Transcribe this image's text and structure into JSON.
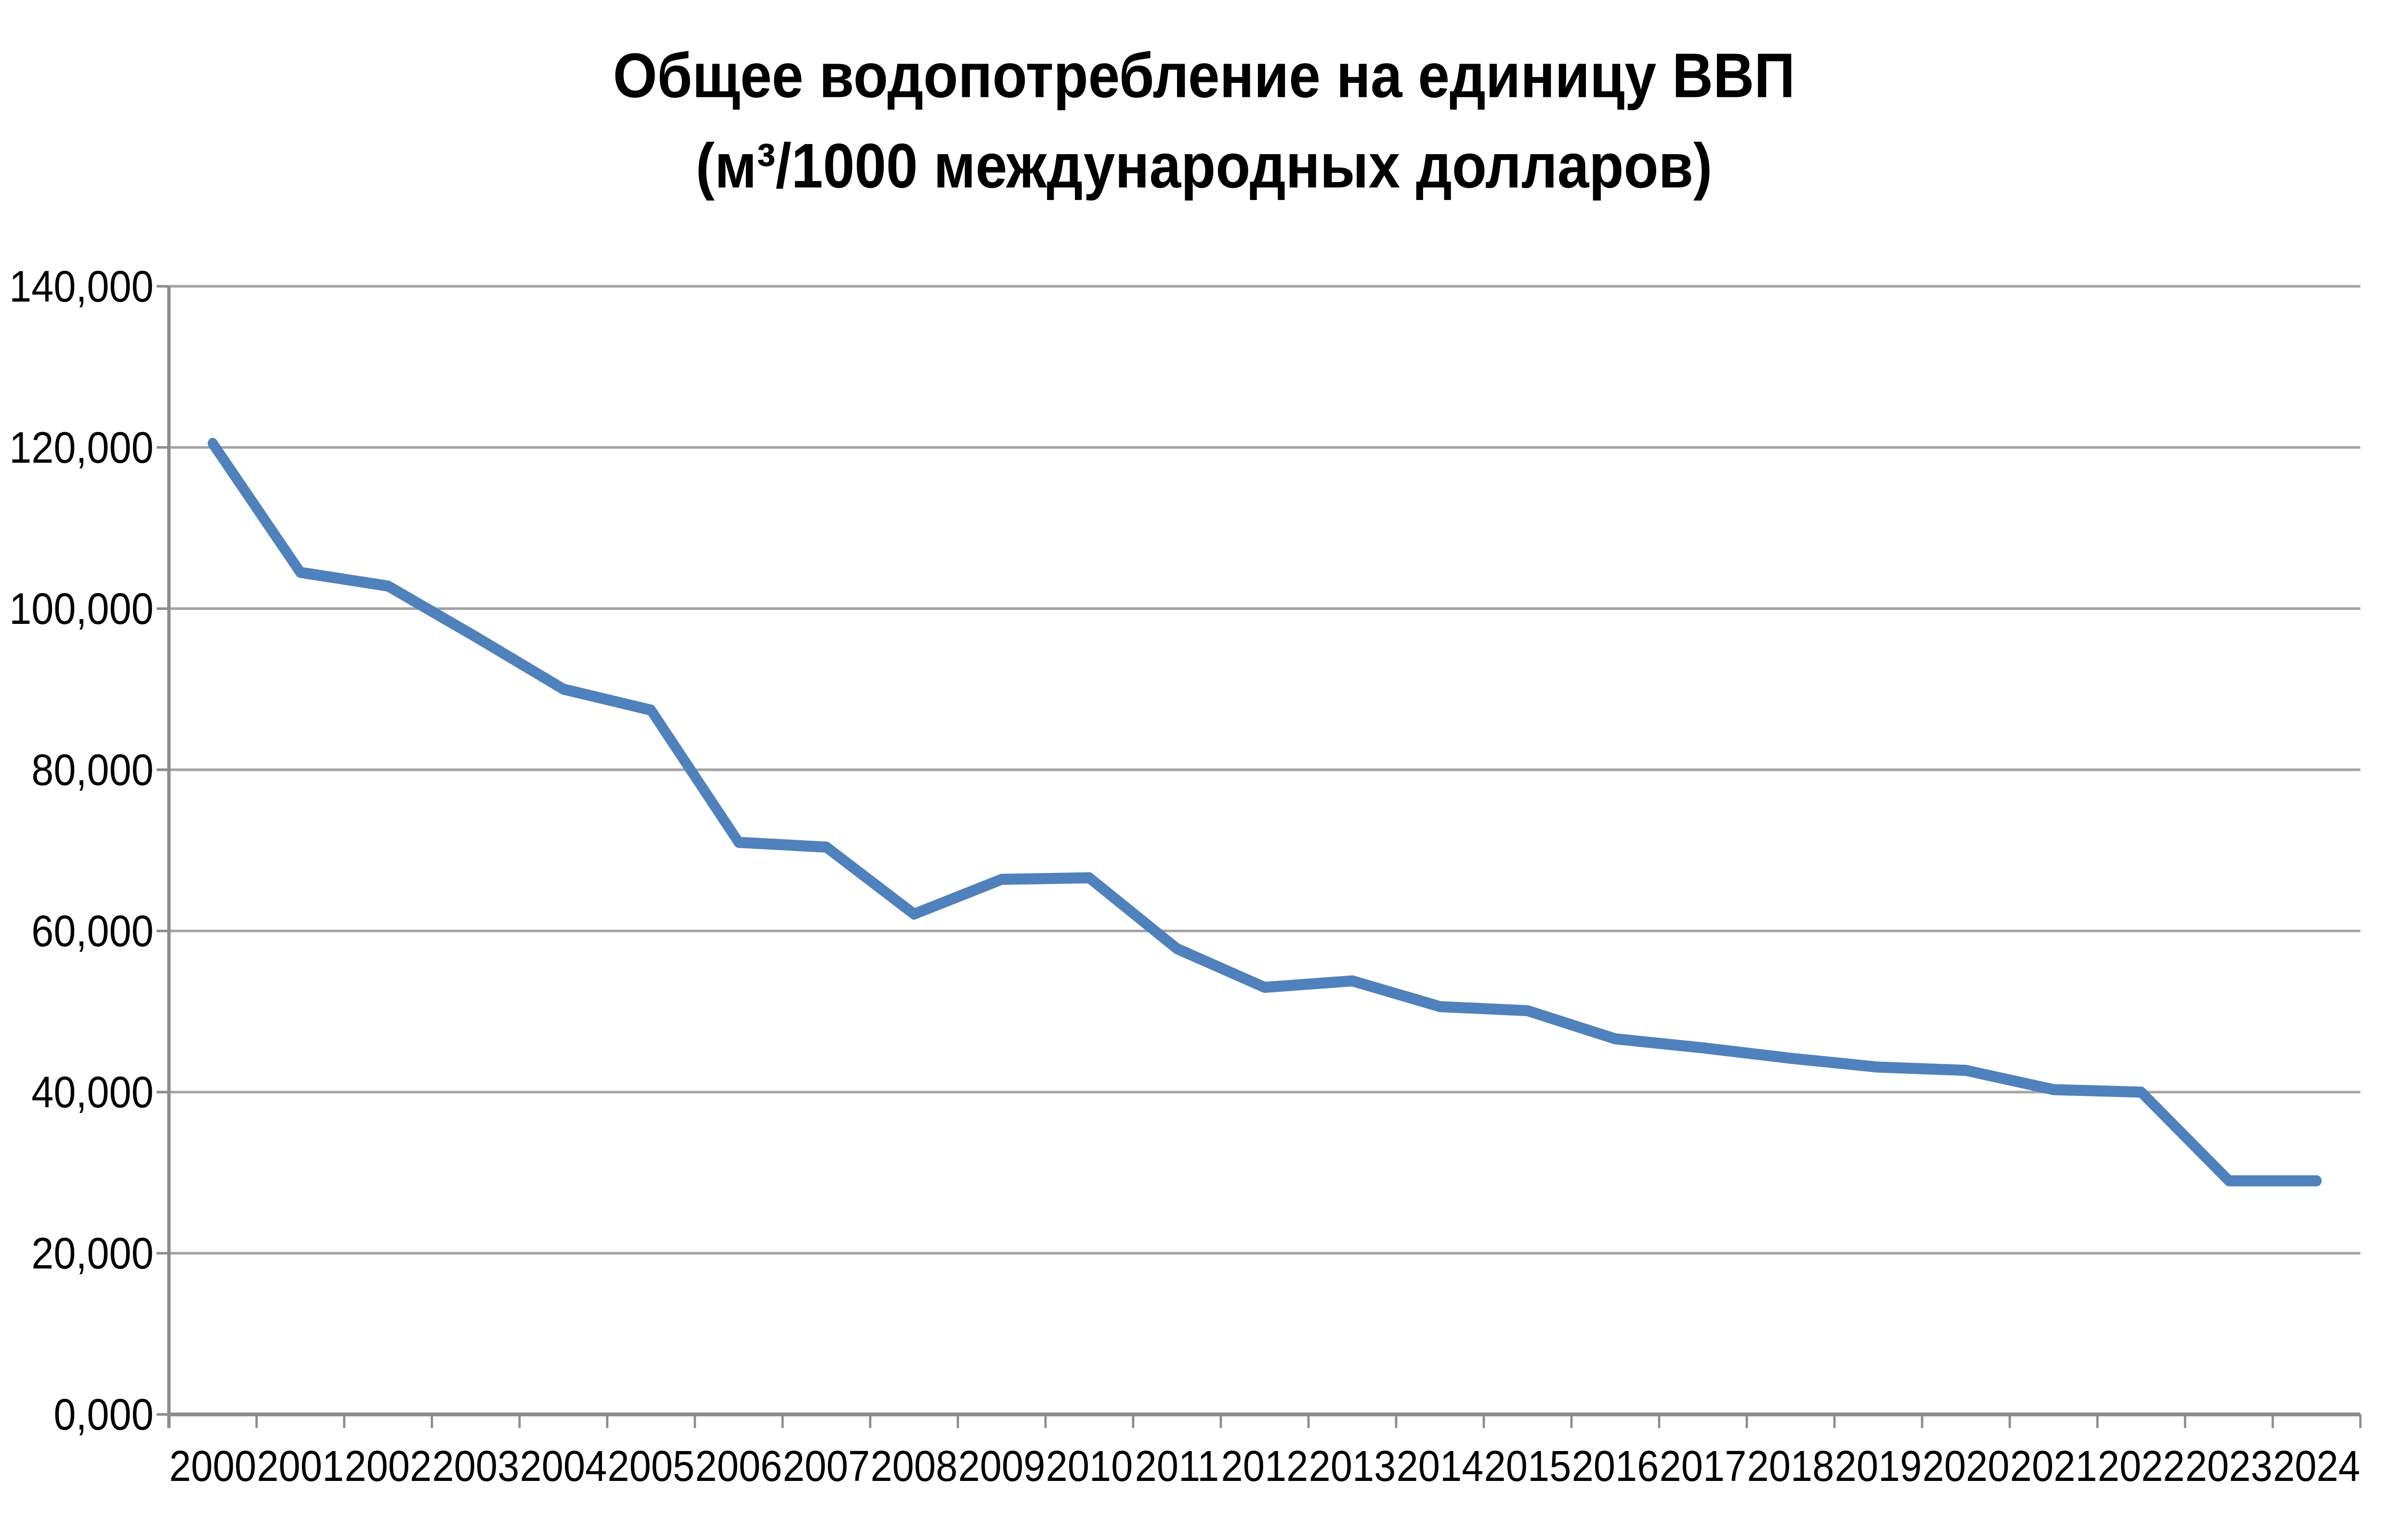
{
  "chart": {
    "title_line1": "Общее водопотребление на единицу ВВП",
    "title_line2": "(м³/1000 международных долларов)"
  },
  "chart_data": {
    "type": "line",
    "title": "Общее водопотребление на единицу ВВП (м³/1000 международных долларов)",
    "categories": [
      "2000",
      "2001",
      "2002",
      "2003",
      "2004",
      "2005",
      "2006",
      "2007",
      "2008",
      "2009",
      "2010",
      "2011",
      "2012",
      "2013",
      "2014",
      "2015",
      "2016",
      "2017",
      "2018",
      "2019",
      "2020",
      "2021",
      "2022",
      "2023",
      "2024"
    ],
    "values": [
      120500,
      104500,
      102800,
      96500,
      90000,
      87400,
      71000,
      70400,
      62100,
      66400,
      66600,
      57800,
      53000,
      53800,
      50600,
      50100,
      46600,
      45500,
      44200,
      43100,
      42700,
      40300,
      40000,
      29000,
      29000
    ],
    "xlabel": "",
    "ylabel": "",
    "ylim": [
      0,
      140000
    ],
    "ytick_step": 20000,
    "ytick_labels": [
      "0,000",
      "20,000",
      "40,000",
      "60,000",
      "80,000",
      "100,000",
      "120,000",
      "140,000"
    ],
    "grid": true,
    "legend_position": "none",
    "line_color": "#4F81BD",
    "gridline_color": "#A3A3A3",
    "axis_color": "#8C8C8C",
    "text_color": "#000000",
    "background_color": "#FFFFFF"
  }
}
